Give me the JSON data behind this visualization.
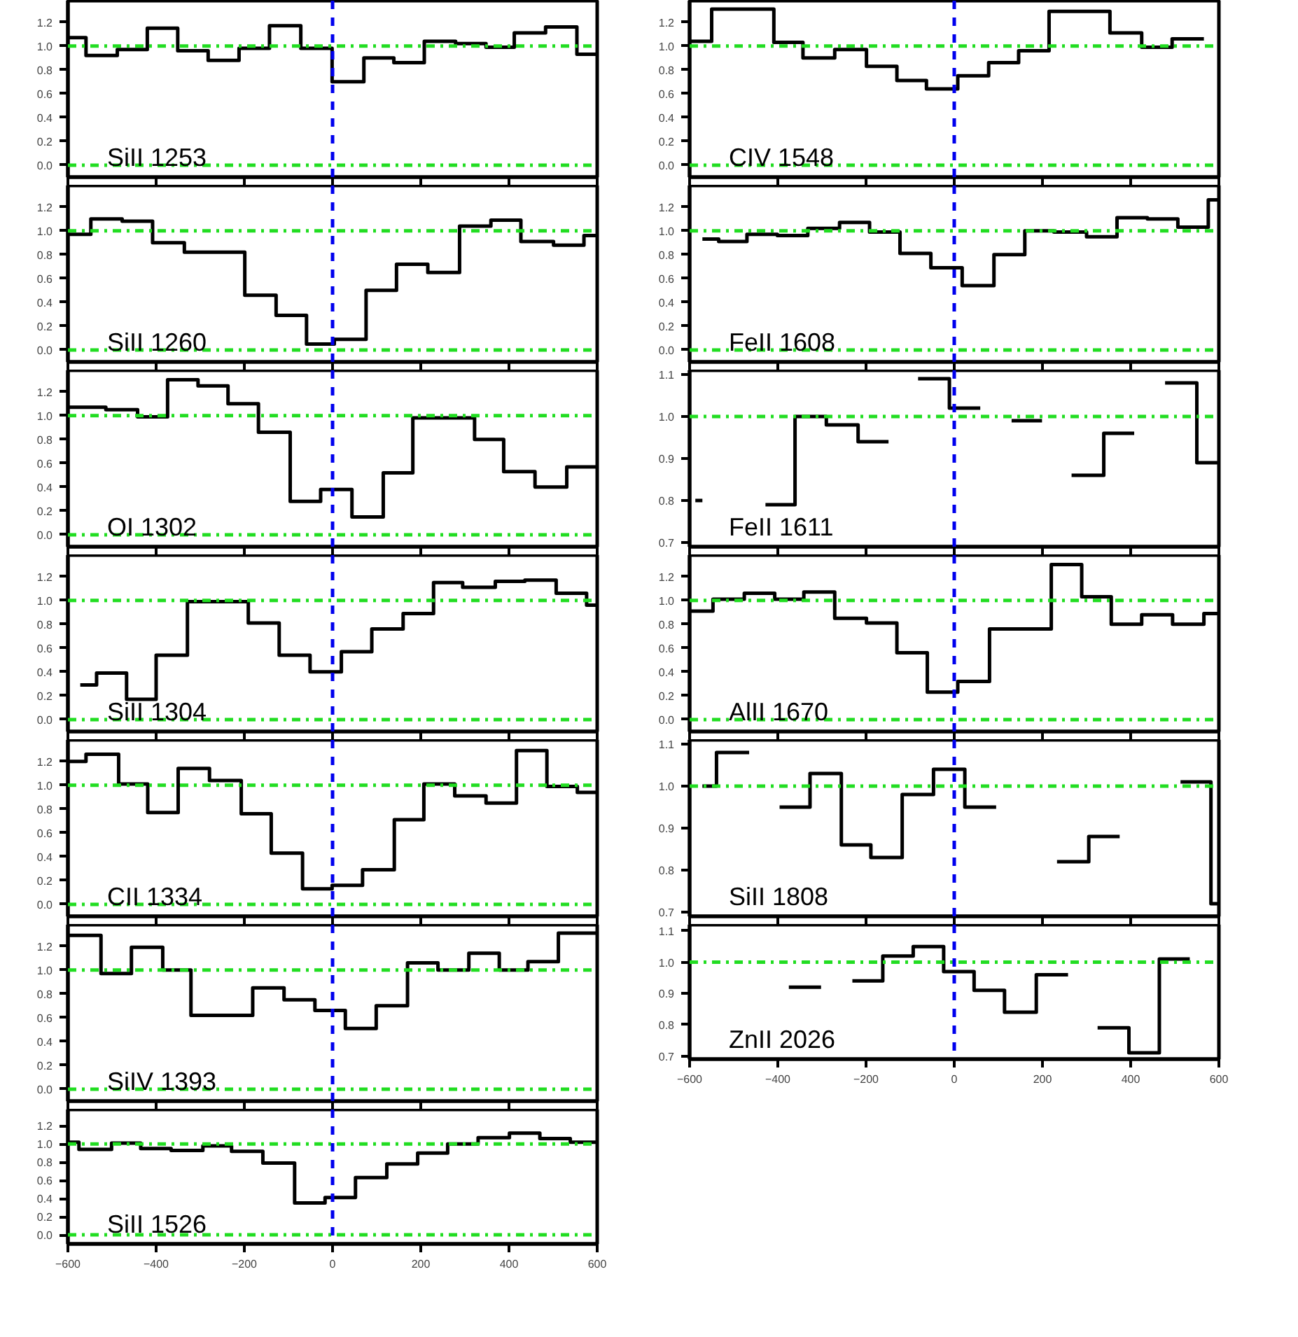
{
  "chart_data": [
    {
      "type": "step",
      "annotations": [
        "SiII 1253"
      ],
      "color": "#000000",
      "x": [
        -600,
        -559,
        -488,
        -420,
        -351,
        -282,
        -212,
        -143,
        -72,
        -1,
        71,
        139,
        208,
        279,
        348,
        412,
        483,
        554,
        600
      ],
      "values": [
        1.07,
        0.92,
        0.97,
        1.15,
        0.96,
        0.88,
        0.98,
        1.17,
        0.98,
        0.7,
        0.9,
        0.86,
        1.04,
        1.02,
        0.99,
        1.11,
        1.16,
        0.93,
        0.93
      ],
      "xlim": [
        -600,
        600
      ],
      "ylim": [
        -0.1,
        1.38
      ],
      "xticks": [
        -600,
        -400,
        -200,
        0,
        200,
        400,
        600
      ],
      "yticks": [
        {
          "value": 0,
          "label": "0.0"
        },
        {
          "value": 0.2,
          "label": "0.2"
        },
        {
          "value": 0.4,
          "label": "0.4"
        },
        {
          "value": 0.6,
          "label": "0.6"
        },
        {
          "value": 0.8,
          "label": "0.8"
        },
        {
          "value": 1,
          "label": "1.0"
        },
        {
          "value": 1.2,
          "label": "1.2"
        }
      ],
      "tick_labels": "y",
      "ref_lines": [
        {
          "axis": "y",
          "value": 0,
          "color": "#22dd22",
          "line_style": "dashdot"
        },
        {
          "axis": "y",
          "value": 1,
          "color": "#22dd22",
          "line_style": "dashdot"
        },
        {
          "axis": "x",
          "value": 0,
          "color": "#0000ee",
          "line_style": "dashed"
        }
      ]
    },
    {
      "type": "step",
      "annotations": [
        "CIV 1548"
      ],
      "color": "#000000",
      "x": [
        -600,
        -550,
        -409,
        -343,
        -271,
        -199,
        -130,
        -63,
        8,
        78,
        146,
        215,
        353,
        425,
        494,
        566
      ],
      "values": [
        1.04,
        1.31,
        1.03,
        0.9,
        0.97,
        0.83,
        0.71,
        0.64,
        0.75,
        0.86,
        0.96,
        1.29,
        1.11,
        0.99,
        1.06,
        1.06
      ],
      "xlim": [
        -600,
        600
      ],
      "ylim": [
        -0.1,
        1.38
      ],
      "xticks": [
        -600,
        -400,
        -200,
        0,
        200,
        400,
        600
      ],
      "yticks": [
        {
          "value": 0,
          "label": "0.0"
        },
        {
          "value": 0.2,
          "label": "0.2"
        },
        {
          "value": 0.4,
          "label": "0.4"
        },
        {
          "value": 0.6,
          "label": "0.6"
        },
        {
          "value": 0.8,
          "label": "0.8"
        },
        {
          "value": 1,
          "label": "1.0"
        },
        {
          "value": 1.2,
          "label": "1.2"
        }
      ],
      "tick_labels": "y",
      "ref_lines": [
        {
          "axis": "y",
          "value": 0,
          "color": "#22dd22",
          "line_style": "dashdot"
        },
        {
          "axis": "y",
          "value": 1,
          "color": "#22dd22",
          "line_style": "dashdot"
        },
        {
          "axis": "x",
          "value": 0,
          "color": "#0000ee",
          "line_style": "dashed"
        }
      ]
    },
    {
      "type": "step",
      "annotations": [
        "SiII 1260"
      ],
      "color": "#000000",
      "x": [
        -600,
        -548,
        -477,
        -408,
        -336,
        -199,
        -128,
        -59,
        4,
        76,
        145,
        216,
        288,
        359,
        427,
        501,
        570,
        600
      ],
      "values": [
        0.97,
        1.1,
        1.08,
        0.9,
        0.82,
        0.46,
        0.29,
        0.05,
        0.09,
        0.5,
        0.72,
        0.65,
        1.04,
        1.09,
        0.91,
        0.88,
        0.96,
        0.96
      ],
      "xlim": [
        -600,
        600
      ],
      "ylim": [
        -0.1,
        1.38
      ],
      "xticks": [
        -600,
        -400,
        -200,
        0,
        200,
        400,
        600
      ],
      "yticks": [
        {
          "value": 0,
          "label": "0.0"
        },
        {
          "value": 0.2,
          "label": "0.2"
        },
        {
          "value": 0.4,
          "label": "0.4"
        },
        {
          "value": 0.6,
          "label": "0.6"
        },
        {
          "value": 0.8,
          "label": "0.8"
        },
        {
          "value": 1,
          "label": "1.0"
        },
        {
          "value": 1.2,
          "label": "1.2"
        }
      ],
      "tick_labels": "y",
      "ref_lines": [
        {
          "axis": "y",
          "value": 0,
          "color": "#22dd22",
          "line_style": "dashdot"
        },
        {
          "axis": "y",
          "value": 1,
          "color": "#22dd22",
          "line_style": "dashdot"
        },
        {
          "axis": "x",
          "value": 0,
          "color": "#0000ee",
          "line_style": "dashed"
        }
      ]
    },
    {
      "type": "step",
      "annotations": [
        "FeII 1608"
      ],
      "color": "#000000",
      "x": [
        -571,
        -534,
        -470,
        -401,
        -332,
        -260,
        -192,
        -123,
        -53,
        18,
        90,
        160,
        226,
        300,
        369,
        438,
        507,
        576,
        600
      ],
      "values": [
        0.93,
        0.91,
        0.97,
        0.96,
        1.02,
        1.07,
        0.99,
        0.81,
        0.69,
        0.54,
        0.8,
        1.0,
        0.99,
        0.95,
        1.11,
        1.1,
        1.03,
        1.26,
        1.26
      ],
      "xlim": [
        -600,
        600
      ],
      "ylim": [
        -0.1,
        1.38
      ],
      "xticks": [
        -600,
        -400,
        -200,
        0,
        200,
        400,
        600
      ],
      "yticks": [
        {
          "value": 0,
          "label": "0.0"
        },
        {
          "value": 0.2,
          "label": "0.2"
        },
        {
          "value": 0.4,
          "label": "0.4"
        },
        {
          "value": 0.6,
          "label": "0.6"
        },
        {
          "value": 0.8,
          "label": "0.8"
        },
        {
          "value": 1,
          "label": "1.0"
        },
        {
          "value": 1.2,
          "label": "1.2"
        }
      ],
      "tick_labels": "y",
      "ref_lines": [
        {
          "axis": "y",
          "value": 0,
          "color": "#22dd22",
          "line_style": "dashdot"
        },
        {
          "axis": "y",
          "value": 1,
          "color": "#22dd22",
          "line_style": "dashdot"
        },
        {
          "axis": "x",
          "value": 0,
          "color": "#0000ee",
          "line_style": "dashed"
        }
      ]
    },
    {
      "type": "step",
      "annotations": [
        "OI 1302"
      ],
      "color": "#000000",
      "x": [
        -600,
        -514,
        -442,
        -374,
        -305,
        -237,
        -168,
        -96,
        -27,
        44,
        115,
        182,
        322,
        388,
        459,
        531,
        600
      ],
      "values": [
        1.07,
        1.05,
        0.99,
        1.3,
        1.25,
        1.1,
        0.86,
        0.28,
        0.38,
        0.15,
        0.52,
        0.98,
        0.8,
        0.53,
        0.4,
        0.57,
        0.57
      ],
      "xlim": [
        -600,
        600
      ],
      "ylim": [
        -0.1,
        1.38
      ],
      "xticks": [
        -600,
        -400,
        -200,
        0,
        200,
        400,
        600
      ],
      "yticks": [
        {
          "value": 0,
          "label": "0.0"
        },
        {
          "value": 0.2,
          "label": "0.2"
        },
        {
          "value": 0.4,
          "label": "0.4"
        },
        {
          "value": 0.6,
          "label": "0.6"
        },
        {
          "value": 0.8,
          "label": "0.8"
        },
        {
          "value": 1,
          "label": "1.0"
        },
        {
          "value": 1.2,
          "label": "1.2"
        }
      ],
      "tick_labels": "y",
      "ref_lines": [
        {
          "axis": "y",
          "value": 0,
          "color": "#22dd22",
          "line_style": "dashdot"
        },
        {
          "axis": "y",
          "value": 1,
          "color": "#22dd22",
          "line_style": "dashdot"
        },
        {
          "axis": "x",
          "value": 0,
          "color": "#0000ee",
          "line_style": "dashed"
        }
      ]
    },
    {
      "type": "step",
      "annotations": [
        "FeII 1611"
      ],
      "color": "#000000",
      "x": [
        -587,
        -571,
        -428,
        -361,
        -290,
        -218,
        -149,
        -82,
        -11,
        59,
        130,
        199,
        266,
        339,
        408,
        478,
        550,
        600
      ],
      "values": [
        0.8,
        null,
        0.79,
        1.0,
        0.98,
        0.94,
        null,
        1.09,
        1.02,
        null,
        0.99,
        null,
        0.86,
        0.96,
        null,
        1.08,
        0.89,
        0.89
      ],
      "xlim": [
        -600,
        600
      ],
      "ylim": [
        0.69,
        1.11
      ],
      "xticks": [
        -600,
        -400,
        -200,
        0,
        200,
        400,
        600
      ],
      "yticks": [
        {
          "value": 0.7,
          "label": "0.7"
        },
        {
          "value": 0.8,
          "label": "0.8"
        },
        {
          "value": 0.9,
          "label": "0.9"
        },
        {
          "value": 1,
          "label": "1.0"
        },
        {
          "value": 1.1,
          "label": "1.1"
        }
      ],
      "tick_labels": "y",
      "ref_lines": [
        {
          "axis": "y",
          "value": 1,
          "color": "#22dd22",
          "line_style": "dashdot"
        },
        {
          "axis": "x",
          "value": 0,
          "color": "#0000ee",
          "line_style": "dashed"
        }
      ]
    },
    {
      "type": "step",
      "annotations": [
        "SiII 1304"
      ],
      "color": "#000000",
      "x": [
        -572,
        -535,
        -467,
        -400,
        -329,
        -191,
        -121,
        -51,
        20,
        89,
        160,
        229,
        295,
        369,
        436,
        507,
        576,
        600
      ],
      "values": [
        0.29,
        0.39,
        0.17,
        0.54,
        0.99,
        0.81,
        0.54,
        0.4,
        0.57,
        0.76,
        0.89,
        1.15,
        1.11,
        1.16,
        1.17,
        1.06,
        0.96,
        0.96
      ],
      "xlim": [
        -600,
        600
      ],
      "ylim": [
        -0.1,
        1.38
      ],
      "xticks": [
        -600,
        -400,
        -200,
        0,
        200,
        400,
        600
      ],
      "yticks": [
        {
          "value": 0,
          "label": "0.0"
        },
        {
          "value": 0.2,
          "label": "0.2"
        },
        {
          "value": 0.4,
          "label": "0.4"
        },
        {
          "value": 0.6,
          "label": "0.6"
        },
        {
          "value": 0.8,
          "label": "0.8"
        },
        {
          "value": 1,
          "label": "1.0"
        },
        {
          "value": 1.2,
          "label": "1.2"
        }
      ],
      "tick_labels": "y",
      "ref_lines": [
        {
          "axis": "y",
          "value": 0,
          "color": "#22dd22",
          "line_style": "dashdot"
        },
        {
          "axis": "y",
          "value": 1,
          "color": "#22dd22",
          "line_style": "dashdot"
        },
        {
          "axis": "x",
          "value": 0,
          "color": "#0000ee",
          "line_style": "dashed"
        }
      ]
    },
    {
      "type": "step",
      "annotations": [
        "AlII 1670"
      ],
      "color": "#000000",
      "x": [
        -600,
        -547,
        -476,
        -407,
        -341,
        -271,
        -199,
        -130,
        -61,
        8,
        80,
        220,
        289,
        356,
        425,
        495,
        566,
        600
      ],
      "values": [
        0.91,
        1.01,
        1.06,
        1.01,
        1.07,
        0.85,
        0.81,
        0.56,
        0.23,
        0.32,
        0.76,
        1.3,
        1.03,
        0.8,
        0.88,
        0.8,
        0.89,
        0.89
      ],
      "xlim": [
        -600,
        600
      ],
      "ylim": [
        -0.1,
        1.38
      ],
      "xticks": [
        -600,
        -400,
        -200,
        0,
        200,
        400,
        600
      ],
      "yticks": [
        {
          "value": 0,
          "label": "0.0"
        },
        {
          "value": 0.2,
          "label": "0.2"
        },
        {
          "value": 0.4,
          "label": "0.4"
        },
        {
          "value": 0.6,
          "label": "0.6"
        },
        {
          "value": 0.8,
          "label": "0.8"
        },
        {
          "value": 1,
          "label": "1.0"
        },
        {
          "value": 1.2,
          "label": "1.2"
        }
      ],
      "tick_labels": "y",
      "ref_lines": [
        {
          "axis": "y",
          "value": 0,
          "color": "#22dd22",
          "line_style": "dashdot"
        },
        {
          "axis": "y",
          "value": 1,
          "color": "#22dd22",
          "line_style": "dashdot"
        },
        {
          "axis": "x",
          "value": 0,
          "color": "#0000ee",
          "line_style": "dashed"
        }
      ]
    },
    {
      "type": "step",
      "annotations": [
        "CII 1334"
      ],
      "color": "#000000",
      "x": [
        -600,
        -559,
        -485,
        -419,
        -350,
        -279,
        -207,
        -139,
        -68,
        -1,
        68,
        140,
        207,
        277,
        348,
        417,
        486,
        555,
        600
      ],
      "values": [
        1.2,
        1.26,
        1.01,
        0.77,
        1.14,
        1.04,
        0.76,
        0.43,
        0.13,
        0.16,
        0.29,
        0.71,
        1.01,
        0.91,
        0.85,
        1.29,
        0.99,
        0.94,
        0.94
      ],
      "xlim": [
        -600,
        600
      ],
      "ylim": [
        -0.1,
        1.38
      ],
      "xticks": [
        -600,
        -400,
        -200,
        0,
        200,
        400,
        600
      ],
      "yticks": [
        {
          "value": 0,
          "label": "0.0"
        },
        {
          "value": 0.2,
          "label": "0.2"
        },
        {
          "value": 0.4,
          "label": "0.4"
        },
        {
          "value": 0.6,
          "label": "0.6"
        },
        {
          "value": 0.8,
          "label": "0.8"
        },
        {
          "value": 1,
          "label": "1.0"
        },
        {
          "value": 1.2,
          "label": "1.2"
        }
      ],
      "tick_labels": "y",
      "ref_lines": [
        {
          "axis": "y",
          "value": 0,
          "color": "#22dd22",
          "line_style": "dashdot"
        },
        {
          "axis": "y",
          "value": 1,
          "color": "#22dd22",
          "line_style": "dashdot"
        },
        {
          "axis": "x",
          "value": 0,
          "color": "#0000ee",
          "line_style": "dashed"
        }
      ]
    },
    {
      "type": "step",
      "annotations": [
        "SiII 1808"
      ],
      "color": "#000000",
      "x": [
        -571,
        -539,
        -465,
        -396,
        -327,
        -256,
        -189,
        -118,
        -47,
        24,
        95,
        233,
        305,
        375,
        513,
        582,
        600
      ],
      "values": [
        1.0,
        1.08,
        null,
        0.95,
        1.03,
        0.86,
        0.83,
        0.98,
        1.04,
        0.95,
        null,
        0.82,
        0.88,
        null,
        1.01,
        0.72,
        0.72
      ],
      "xlim": [
        -600,
        600
      ],
      "ylim": [
        0.69,
        1.11
      ],
      "xticks": [
        -600,
        -400,
        -200,
        0,
        200,
        400,
        600
      ],
      "yticks": [
        {
          "value": 0.7,
          "label": "0.7"
        },
        {
          "value": 0.8,
          "label": "0.8"
        },
        {
          "value": 0.9,
          "label": "0.9"
        },
        {
          "value": 1,
          "label": "1.0"
        },
        {
          "value": 1.1,
          "label": "1.1"
        }
      ],
      "tick_labels": "y",
      "ref_lines": [
        {
          "axis": "y",
          "value": 1,
          "color": "#22dd22",
          "line_style": "dashdot"
        },
        {
          "axis": "x",
          "value": 0,
          "color": "#0000ee",
          "line_style": "dashed"
        }
      ]
    },
    {
      "type": "step",
      "annotations": [
        "SiIV 1393"
      ],
      "color": "#000000",
      "x": [
        -600,
        -525,
        -456,
        -385,
        -321,
        -181,
        -110,
        -40,
        29,
        99,
        170,
        239,
        309,
        378,
        443,
        512,
        600
      ],
      "values": [
        1.29,
        0.97,
        1.19,
        1.0,
        0.62,
        0.85,
        0.75,
        0.66,
        0.51,
        0.7,
        1.06,
        1.0,
        1.14,
        1.0,
        1.07,
        1.31,
        1.31
      ],
      "xlim": [
        -600,
        600
      ],
      "ylim": [
        -0.1,
        1.38
      ],
      "xticks": [
        -600,
        -400,
        -200,
        0,
        200,
        400,
        600
      ],
      "yticks": [
        {
          "value": 0,
          "label": "0.0"
        },
        {
          "value": 0.2,
          "label": "0.2"
        },
        {
          "value": 0.4,
          "label": "0.4"
        },
        {
          "value": 0.6,
          "label": "0.6"
        },
        {
          "value": 0.8,
          "label": "0.8"
        },
        {
          "value": 1,
          "label": "1.0"
        },
        {
          "value": 1.2,
          "label": "1.2"
        }
      ],
      "tick_labels": "y",
      "ref_lines": [
        {
          "axis": "y",
          "value": 0,
          "color": "#22dd22",
          "line_style": "dashdot"
        },
        {
          "axis": "y",
          "value": 1,
          "color": "#22dd22",
          "line_style": "dashdot"
        },
        {
          "axis": "x",
          "value": 0,
          "color": "#0000ee",
          "line_style": "dashed"
        }
      ]
    },
    {
      "type": "step",
      "annotations": [
        "ZnII 2026"
      ],
      "color": "#000000",
      "x": [
        -375,
        -302,
        -231,
        -162,
        -93,
        -24,
        45,
        114,
        186,
        258,
        325,
        396,
        465,
        534
      ],
      "values": [
        0.92,
        null,
        0.94,
        1.02,
        1.05,
        0.97,
        0.91,
        0.84,
        0.96,
        null,
        0.79,
        0.71,
        1.01,
        1.01
      ],
      "xlim": [
        -600,
        600
      ],
      "ylim": [
        0.69,
        1.12
      ],
      "xticks": [
        -600,
        -400,
        -200,
        0,
        200,
        400,
        600
      ],
      "yticks": [
        {
          "value": 0.7,
          "label": "0.7"
        },
        {
          "value": 0.8,
          "label": "0.8"
        },
        {
          "value": 0.9,
          "label": "0.9"
        },
        {
          "value": 1,
          "label": "1.0"
        },
        {
          "value": 1.1,
          "label": "1.1"
        }
      ],
      "ref_lines": [
        {
          "axis": "y",
          "value": 1,
          "color": "#22dd22",
          "line_style": "dashdot"
        },
        {
          "axis": "x",
          "value": 0,
          "color": "#0000ee",
          "line_style": "dashed"
        }
      ]
    },
    {
      "type": "step",
      "annotations": [
        "SiII 1526"
      ],
      "color": "#000000",
      "x": [
        -600,
        -575,
        -501,
        -435,
        -366,
        -294,
        -229,
        -158,
        -86,
        -17,
        52,
        123,
        193,
        261,
        330,
        401,
        470,
        539,
        600
      ],
      "values": [
        1.02,
        0.94,
        1.01,
        0.95,
        0.93,
        0.98,
        0.92,
        0.79,
        0.35,
        0.41,
        0.63,
        0.78,
        0.9,
        1.0,
        1.07,
        1.12,
        1.06,
        1.02,
        1.02
      ],
      "xlim": [
        -600,
        600
      ],
      "ylim": [
        -0.1,
        1.38
      ],
      "xticks": [
        -600,
        -400,
        -200,
        0,
        200,
        400,
        600
      ],
      "yticks": [
        {
          "value": 0,
          "label": "0.0"
        },
        {
          "value": 0.2,
          "label": "0.2"
        },
        {
          "value": 0.4,
          "label": "0.4"
        },
        {
          "value": 0.6,
          "label": "0.6"
        },
        {
          "value": 0.8,
          "label": "0.8"
        },
        {
          "value": 1,
          "label": "1.0"
        },
        {
          "value": 1.2,
          "label": "1.2"
        }
      ],
      "ref_lines": [
        {
          "axis": "y",
          "value": 0,
          "color": "#22dd22",
          "line_style": "dashdot"
        },
        {
          "axis": "y",
          "value": 1,
          "color": "#22dd22",
          "line_style": "dashdot"
        },
        {
          "axis": "x",
          "value": 0,
          "color": "#0000ee",
          "line_style": "dashed"
        }
      ]
    }
  ]
}
